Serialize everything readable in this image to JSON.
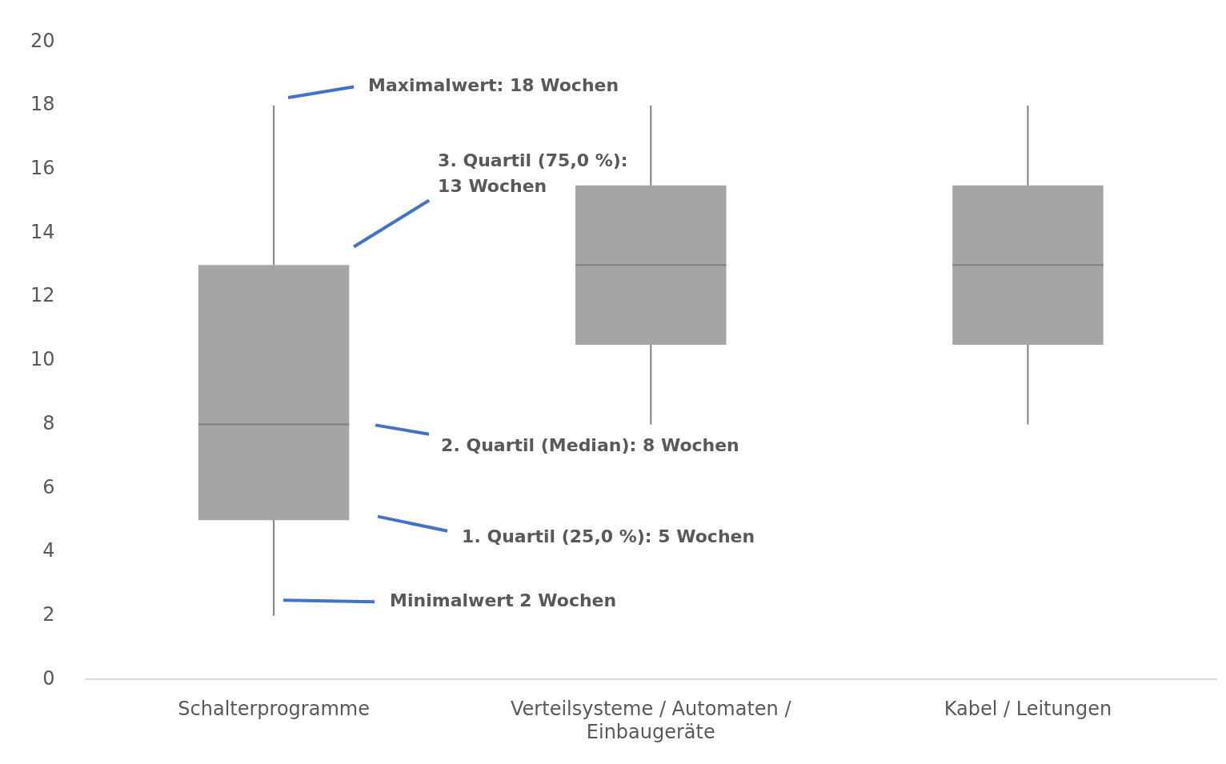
{
  "chart_data": {
    "type": "box",
    "categories": [
      "Schalterprogramme",
      "Verteilsysteme / Automaten / Einbaugeräte",
      "Kabel / Leitungen"
    ],
    "boxes": [
      {
        "low": 2,
        "q1": 5,
        "median": 8,
        "q3": 13,
        "high": 18
      },
      {
        "low": 8,
        "q1": 10.5,
        "median": 13,
        "q3": 15.5,
        "high": 18
      },
      {
        "low": 8,
        "q1": 10.5,
        "median": 13,
        "q3": 15.5,
        "high": 18
      }
    ],
    "color": "#a5a5a5",
    "ylim": [
      0,
      20
    ],
    "yticks": [
      0,
      2,
      4,
      6,
      8,
      10,
      12,
      14,
      16,
      18,
      20
    ],
    "annotations": [
      "Maximalwert: 18 Wochen",
      "3. Quartil (75,0 %): 13 Wochen",
      "2. Quartil (Median): 8 Wochen",
      "1. Quartil (25,0 %): 5 Wochen",
      "Minimalwert 2 Wochen"
    ]
  }
}
